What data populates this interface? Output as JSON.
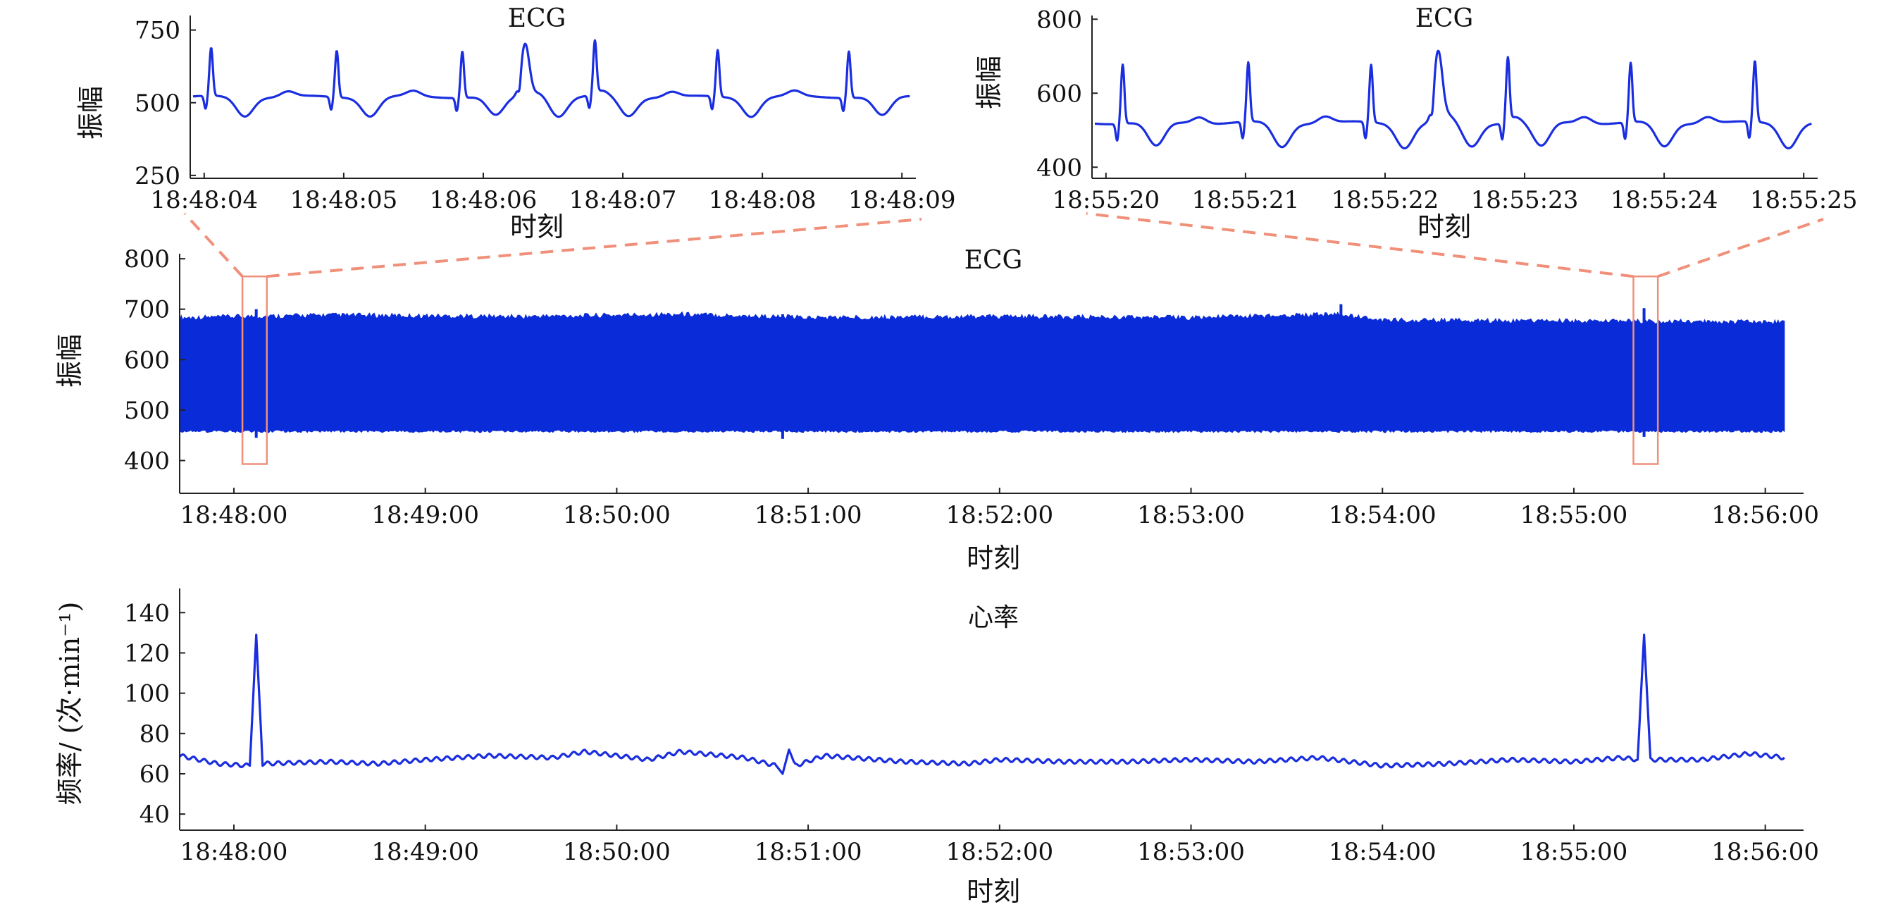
{
  "colors": {
    "trace": "#1a2ee0",
    "band": "#0a2bd8",
    "axis": "#222222",
    "zoom": "#f0907a"
  },
  "chart_data": [
    {
      "id": "ecg-zoom-1",
      "type": "line",
      "title": "ECG",
      "xlabel": "时刻",
      "ylabel": "振幅",
      "xlim": [
        "18:48:03.90",
        "18:48:09.10"
      ],
      "ylim": [
        240,
        800
      ],
      "y_ticks": [
        250,
        500,
        750
      ],
      "x_ticks": [
        "18:48:04",
        "18:48:05",
        "18:48:06",
        "18:48:07",
        "18:48:08",
        "18:48:09"
      ],
      "baseline": 520,
      "beats": [
        {
          "t": "18:48:04.05",
          "peak": 685
        },
        {
          "t": "18:48:04.95",
          "peak": 680
        },
        {
          "t": "18:48:05.85",
          "peak": 680
        },
        {
          "t": "18:48:06.30",
          "peak": 700,
          "width": "wide"
        },
        {
          "t": "18:48:06.80",
          "peak": 700
        },
        {
          "t": "18:48:07.68",
          "peak": 680
        },
        {
          "t": "18:48:08.62",
          "peak": 680
        }
      ]
    },
    {
      "id": "ecg-zoom-2",
      "type": "line",
      "title": "ECG",
      "xlabel": "时刻",
      "ylabel": "振幅",
      "xlim": [
        "18:55:19.90",
        "18:55:25.10"
      ],
      "ylim": [
        370,
        810
      ],
      "y_ticks": [
        400,
        600,
        800
      ],
      "x_ticks": [
        "18:55:20",
        "18:55:21",
        "18:55:22",
        "18:55:23",
        "18:55:24",
        "18:55:25"
      ],
      "baseline": 520,
      "beats": [
        {
          "t": "18:55:20.12",
          "peak": 680
        },
        {
          "t": "18:55:21.02",
          "peak": 680
        },
        {
          "t": "18:55:21.90",
          "peak": 675
        },
        {
          "t": "18:55:22.38",
          "peak": 705,
          "width": "wide"
        },
        {
          "t": "18:55:22.88",
          "peak": 690
        },
        {
          "t": "18:55:23.76",
          "peak": 680
        },
        {
          "t": "18:55:24.65",
          "peak": 685
        }
      ]
    },
    {
      "id": "ecg-full",
      "type": "area",
      "title": "ECG",
      "xlabel": "时刻",
      "ylabel": "振幅",
      "xlim": [
        "18:47:43",
        "18:56:12"
      ],
      "ylim": [
        335,
        810
      ],
      "y_ticks": [
        400,
        500,
        600,
        700,
        800
      ],
      "x_ticks": [
        "18:48:00",
        "18:49:00",
        "18:50:00",
        "18:51:00",
        "18:52:00",
        "18:53:00",
        "18:54:00",
        "18:55:00",
        "18:56:00"
      ],
      "data_range": [
        "18:47:43",
        "18:56:06"
      ],
      "band_lower": 458,
      "band_upper": [
        {
          "t": "18:47:43",
          "v": 683
        },
        {
          "t": "18:48:30",
          "v": 688
        },
        {
          "t": "18:49:30",
          "v": 685
        },
        {
          "t": "18:50:20",
          "v": 690
        },
        {
          "t": "18:51:00",
          "v": 683
        },
        {
          "t": "18:52:00",
          "v": 685
        },
        {
          "t": "18:53:00",
          "v": 683
        },
        {
          "t": "18:53:45",
          "v": 690
        },
        {
          "t": "18:54:00",
          "v": 678
        },
        {
          "t": "18:55:00",
          "v": 676
        },
        {
          "t": "18:56:06",
          "v": 674
        }
      ],
      "spikes": [
        {
          "t": "18:48:07",
          "hi": 700,
          "lo": 445
        },
        {
          "t": "18:50:52",
          "hi": 690,
          "lo": 443
        },
        {
          "t": "18:53:47",
          "hi": 710,
          "lo": 460
        },
        {
          "t": "18:55:22",
          "hi": 702,
          "lo": 447
        }
      ],
      "zoom_windows": [
        {
          "from": "18:48:04",
          "to": "18:48:09",
          "y_from": 393,
          "y_to": 765
        },
        {
          "from": "18:55:20",
          "to": "18:55:25",
          "y_from": 393,
          "y_to": 765
        }
      ]
    },
    {
      "id": "heart-rate",
      "type": "line",
      "title": "心率",
      "xlabel": "时刻",
      "ylabel": "频率/ (次·min⁻¹)",
      "xlim": [
        "18:47:43",
        "18:56:12"
      ],
      "ylim": [
        32,
        152
      ],
      "y_ticks": [
        40,
        60,
        80,
        100,
        120,
        140
      ],
      "x_ticks": [
        "18:48:00",
        "18:49:00",
        "18:50:00",
        "18:51:00",
        "18:52:00",
        "18:53:00",
        "18:54:00",
        "18:55:00",
        "18:56:00"
      ],
      "series": [
        {
          "points": [
            [
              "18:47:43",
              69
            ],
            [
              "18:47:55",
              65
            ],
            [
              "18:48:05",
              64
            ],
            [
              "18:48:07",
              129
            ],
            [
              "18:48:09",
              65
            ],
            [
              "18:48:30",
              66
            ],
            [
              "18:48:45",
              65
            ],
            [
              "18:49:00",
              67
            ],
            [
              "18:49:20",
              69
            ],
            [
              "18:49:40",
              68
            ],
            [
              "18:49:50",
              71
            ],
            [
              "18:50:10",
              67
            ],
            [
              "18:50:20",
              71
            ],
            [
              "18:50:40",
              68
            ],
            [
              "18:50:50",
              64
            ],
            [
              "18:50:52",
              60
            ],
            [
              "18:50:54",
              72
            ],
            [
              "18:50:56",
              64
            ],
            [
              "18:51:05",
              69
            ],
            [
              "18:51:30",
              66
            ],
            [
              "18:51:50",
              65
            ],
            [
              "18:52:00",
              67
            ],
            [
              "18:52:20",
              66
            ],
            [
              "18:52:40",
              66
            ],
            [
              "18:53:00",
              67
            ],
            [
              "18:53:20",
              66
            ],
            [
              "18:53:40",
              68
            ],
            [
              "18:54:00",
              64
            ],
            [
              "18:54:20",
              65
            ],
            [
              "18:54:40",
              67
            ],
            [
              "18:55:00",
              66
            ],
            [
              "18:55:15",
              68
            ],
            [
              "18:55:20",
              67
            ],
            [
              "18:55:22",
              129
            ],
            [
              "18:55:24",
              67
            ],
            [
              "18:55:40",
              67
            ],
            [
              "18:55:55",
              70
            ],
            [
              "18:56:06",
              68
            ]
          ]
        }
      ]
    }
  ]
}
